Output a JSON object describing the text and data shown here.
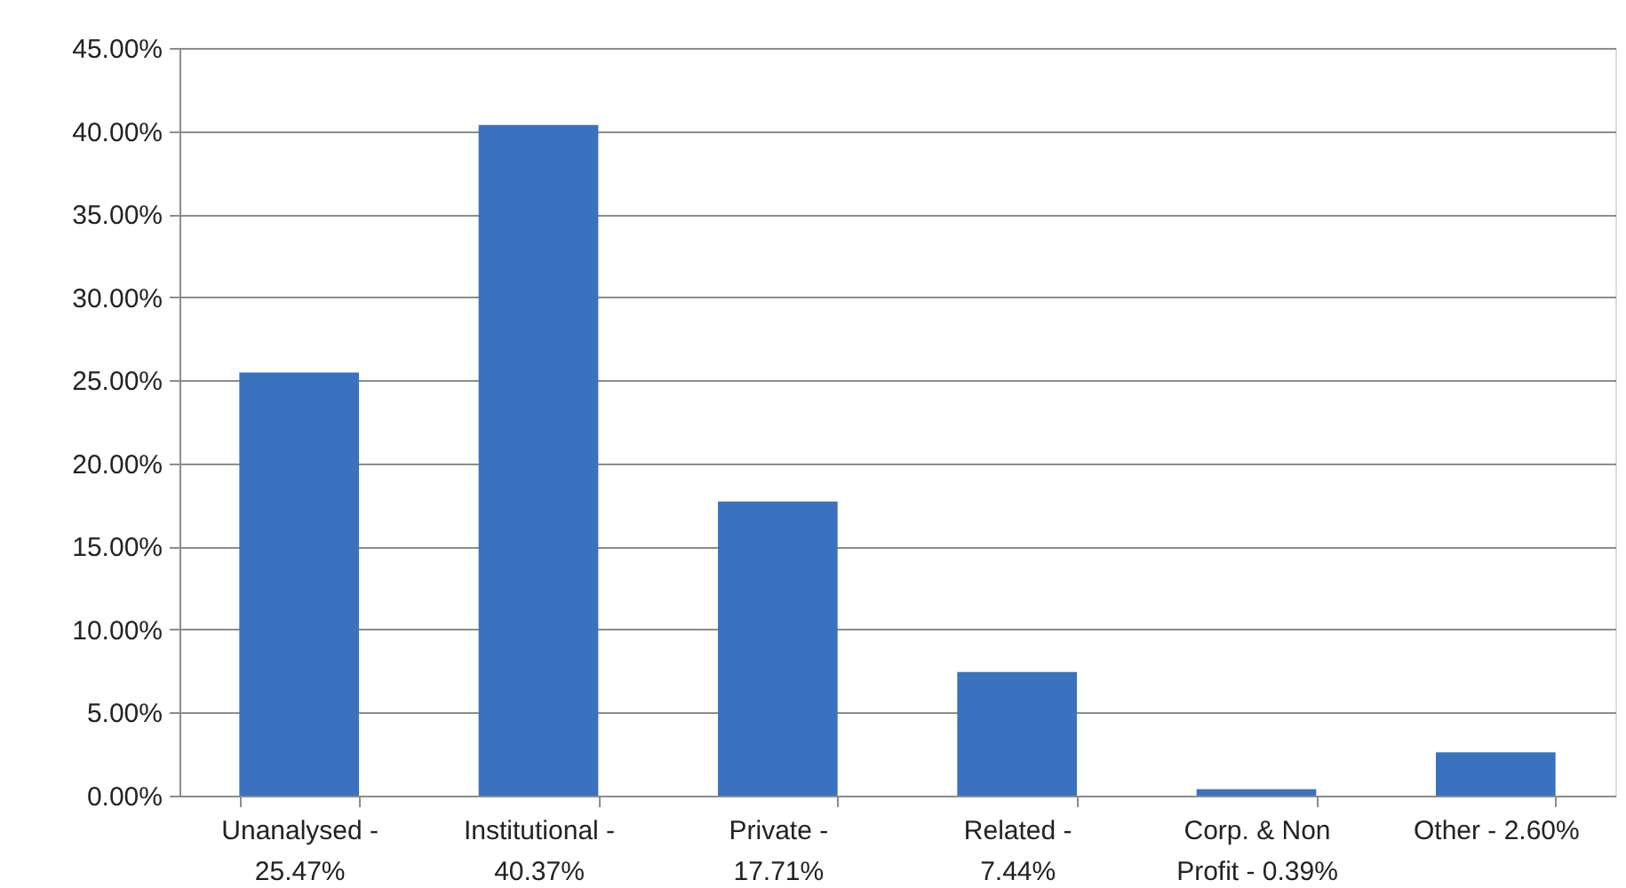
{
  "chart_data": {
    "type": "bar",
    "categories": [
      "Unanalysed - 25.47%",
      "Institutional - 40.37%",
      "Private - 17.71%",
      "Related - 7.44%",
      "Corp. & Non Profit - 0.39%",
      "Other - 2.60%"
    ],
    "values": [
      25.47,
      40.37,
      17.71,
      7.44,
      0.39,
      2.6
    ],
    "color": "#3a72bf",
    "ylim": [
      0,
      45
    ],
    "yticks": [
      {
        "value": 0,
        "label": "0.00%"
      },
      {
        "value": 5,
        "label": "5.00%"
      },
      {
        "value": 10,
        "label": "10.00%"
      },
      {
        "value": 15,
        "label": "15.00%"
      },
      {
        "value": 20,
        "label": "20.00%"
      },
      {
        "value": 25,
        "label": "25.00%"
      },
      {
        "value": 30,
        "label": "30.00%"
      },
      {
        "value": 35,
        "label": "35.00%"
      },
      {
        "value": 40,
        "label": "40.00%"
      },
      {
        "value": 45,
        "label": "45.00%"
      }
    ],
    "grid": "y"
  }
}
